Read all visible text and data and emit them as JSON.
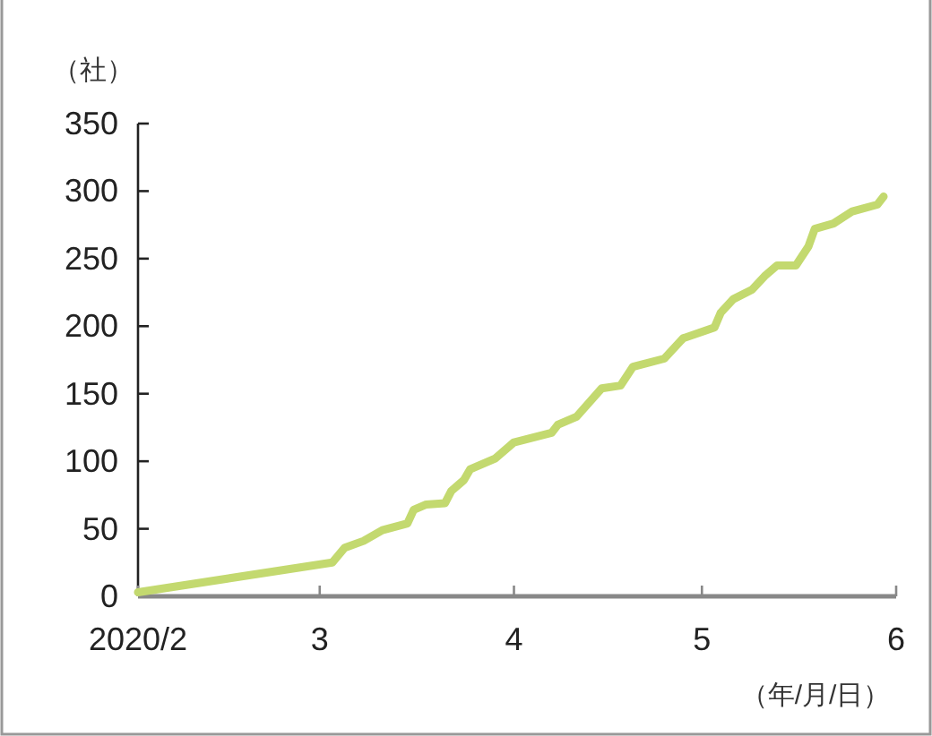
{
  "chart_data": {
    "type": "line",
    "ylabel": "（社）",
    "xlabel": "（年/月/日）",
    "x": [
      "2020-02-01",
      "2020-03-03",
      "2020-03-05",
      "2020-03-08",
      "2020-03-11",
      "2020-03-15",
      "2020-03-16",
      "2020-03-18",
      "2020-03-21",
      "2020-03-22",
      "2020-03-24",
      "2020-03-25",
      "2020-03-29",
      "2020-04-01",
      "2020-04-07",
      "2020-04-08",
      "2020-04-11",
      "2020-04-15",
      "2020-04-18",
      "2020-04-20",
      "2020-04-25",
      "2020-04-28",
      "2020-05-03",
      "2020-05-04",
      "2020-05-06",
      "2020-05-09",
      "2020-05-11",
      "2020-05-13",
      "2020-05-16",
      "2020-05-18",
      "2020-05-19",
      "2020-05-22",
      "2020-05-25",
      "2020-05-29",
      "2020-05-30"
    ],
    "series": [
      {
        "color": "#c3d96f",
        "values": [
          3,
          25,
          36,
          41,
          49,
          54,
          64,
          68,
          69,
          78,
          86,
          94,
          102,
          114,
          121,
          127,
          133,
          154,
          156,
          170,
          176,
          191,
          199,
          210,
          220,
          227,
          237,
          245,
          245,
          259,
          272,
          276,
          285,
          290,
          296
        ]
      }
    ],
    "xlim": [
      "2020-02-01",
      "2020-06-01"
    ],
    "xticks": [
      {
        "value": "2020-02-01",
        "label": "2020/2"
      },
      {
        "value": "2020-03-01",
        "label": "3"
      },
      {
        "value": "2020-04-01",
        "label": "4"
      },
      {
        "value": "2020-05-01",
        "label": "5"
      },
      {
        "value": "2020-06-01",
        "label": "6"
      }
    ],
    "ylim": [
      0,
      350
    ],
    "yticks": [
      0,
      50,
      100,
      150,
      200,
      250,
      300,
      350
    ],
    "grid": false
  }
}
